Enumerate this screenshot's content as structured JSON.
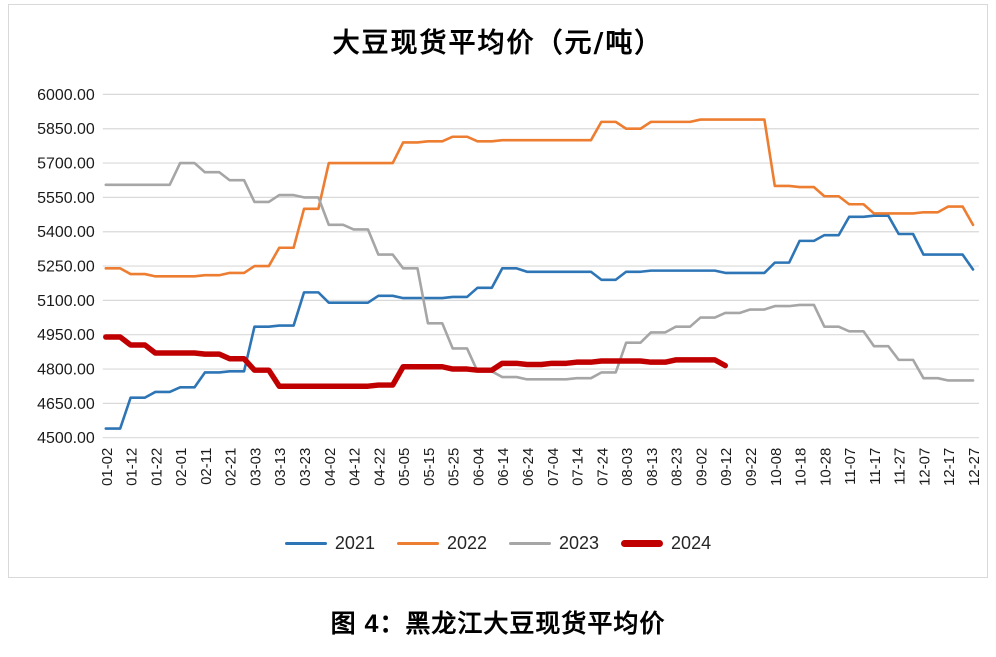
{
  "page": {
    "caption": "图 4：黑龙江大豆现货平均价"
  },
  "chart_data": {
    "type": "line",
    "title": "大豆现货平均价（元/吨）",
    "xlabel": "",
    "ylabel": "",
    "ylim": [
      4500,
      6000
    ],
    "y_tick_step": 150,
    "y_ticks": [
      "4500.00",
      "4650.00",
      "4800.00",
      "4950.00",
      "5100.00",
      "5250.00",
      "5400.00",
      "5550.00",
      "5700.00",
      "5850.00",
      "6000.00"
    ],
    "grid": "horizontal",
    "legend_position": "bottom",
    "line_style": "step",
    "categories": [
      "01-02",
      "01-12",
      "01-22",
      "02-01",
      "02-11",
      "02-21",
      "03-03",
      "03-13",
      "03-23",
      "04-02",
      "04-12",
      "04-22",
      "05-05",
      "05-15",
      "05-25",
      "06-04",
      "06-14",
      "06-24",
      "07-04",
      "07-14",
      "07-24",
      "08-03",
      "08-13",
      "08-23",
      "09-02",
      "09-12",
      "09-22",
      "10-08",
      "10-18",
      "10-28",
      "11-07",
      "11-17",
      "11-27",
      "12-07",
      "12-17",
      "12-27"
    ],
    "series": [
      {
        "name": "2021",
        "color": "#2E75B6",
        "width": 2.6,
        "values": [
          4540,
          4675,
          4700,
          4720,
          4785,
          4790,
          4985,
          4990,
          5135,
          5090,
          5090,
          5120,
          5110,
          5110,
          5115,
          5155,
          5240,
          5225,
          5225,
          5225,
          5190,
          5225,
          5230,
          5230,
          5230,
          5220,
          5220,
          5265,
          5360,
          5385,
          5465,
          5470,
          5390,
          5300,
          5300,
          5235
        ]
      },
      {
        "name": "2022",
        "color": "#ED7D31",
        "width": 2.6,
        "values": [
          5240,
          5215,
          5205,
          5205,
          5210,
          5220,
          5250,
          5330,
          5500,
          5700,
          5700,
          5700,
          5790,
          5795,
          5815,
          5795,
          5800,
          5800,
          5800,
          5800,
          5880,
          5850,
          5880,
          5880,
          5890,
          5890,
          5890,
          5600,
          5595,
          5555,
          5520,
          5480,
          5480,
          5485,
          5510,
          5430
        ]
      },
      {
        "name": "2023",
        "color": "#A6A6A6",
        "width": 2.6,
        "values": [
          5605,
          5605,
          5605,
          5700,
          5660,
          5625,
          5530,
          5560,
          5550,
          5430,
          5410,
          5300,
          5240,
          5000,
          4890,
          4790,
          4765,
          4755,
          4755,
          4760,
          4785,
          4915,
          4960,
          4985,
          5025,
          5045,
          5060,
          5075,
          5080,
          4985,
          4965,
          4900,
          4840,
          4760,
          4750,
          4750
        ]
      },
      {
        "name": "2024",
        "color": "#C00000",
        "width": 5.5,
        "values": [
          4940,
          4905,
          4870,
          4870,
          4865,
          4845,
          4795,
          4725,
          4725,
          4725,
          4725,
          4730,
          4810,
          4810,
          4800,
          4795,
          4825,
          4820,
          4825,
          4830,
          4835,
          4835,
          4830,
          4840,
          4840,
          4815
        ]
      }
    ]
  },
  "style": {
    "grid_color": "#D9D9D9",
    "tick_label_color": "#1a1a1a",
    "card_border_color": "#d9d9d9"
  }
}
